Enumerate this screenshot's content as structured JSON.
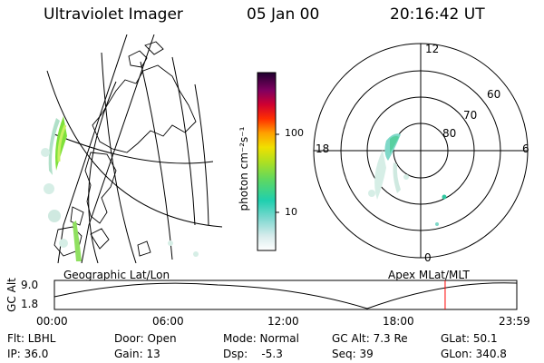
{
  "header": {
    "instrument": "Ultraviolet Imager",
    "date": "05 Jan 00",
    "time": "20:16:42 UT"
  },
  "colorbar": {
    "label": "photon cm⁻²s⁻¹",
    "ticks": [
      "100",
      "10"
    ]
  },
  "panels": {
    "geo_label": "Geographic Lat/Lon",
    "polar_label": "Apex MLat/MLT"
  },
  "polar": {
    "mlt_labels": {
      "top": "12",
      "right": "6",
      "bottom": "0",
      "left": "18"
    },
    "lat_labels": [
      "60",
      "70",
      "80"
    ]
  },
  "timeline": {
    "ylabel": "GC Alt",
    "y_ticks": [
      "9.0",
      "1.8"
    ],
    "x_ticks": [
      "00:00",
      "06:00",
      "12:00",
      "18:00",
      "23:59"
    ],
    "current_hour": 20.28,
    "marker_color": "#ff0000"
  },
  "info": {
    "row1": [
      "Flt: LBHL",
      "Door: Open",
      "Mode: Normal",
      "GC Alt: 7.3 Re",
      "GLat: 50.1"
    ],
    "row2": [
      "IP: 36.0",
      "Gain: 13",
      "Dsp:    -5.3",
      "Seq: 39",
      "GLon: 340.8"
    ]
  }
}
